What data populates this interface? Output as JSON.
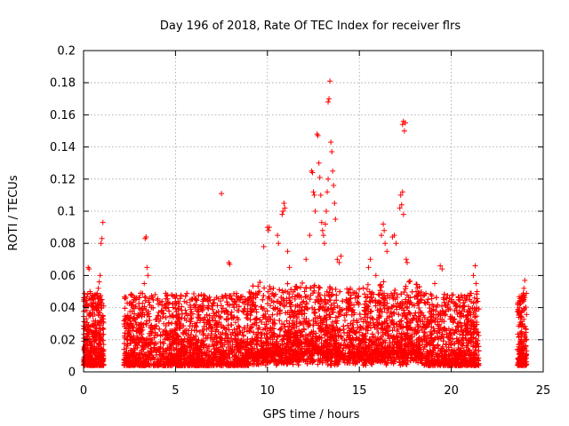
{
  "chart_data": {
    "type": "scatter",
    "title": "Day 196 of 2018, Rate Of TEC Index for receiver flrs",
    "xlabel": "GPS time / hours",
    "ylabel": "ROTI / TECUs",
    "xlim": [
      0,
      25
    ],
    "ylim": [
      0,
      0.2
    ],
    "xticks": [
      0,
      5,
      10,
      15,
      20,
      25
    ],
    "xtick_labels": [
      "0",
      "5",
      "10",
      "15",
      "20",
      "25"
    ],
    "yticks": [
      0,
      0.02,
      0.04,
      0.06,
      0.08,
      0.1,
      0.12,
      0.14,
      0.16,
      0.18,
      0.2
    ],
    "ytick_labels": [
      "0",
      "0.02",
      "0.04",
      "0.06",
      "0.08",
      "0.1",
      "0.12",
      "0.14",
      "0.16",
      "0.18",
      "0.2"
    ],
    "grid": true,
    "marker": "+",
    "color": "#ff0000",
    "data_segments": [
      {
        "start": 0.0,
        "end": 1.1
      },
      {
        "start": 2.2,
        "end": 21.5
      },
      {
        "start": 23.6,
        "end": 24.1
      }
    ],
    "series": [
      {
        "name": "ROTI",
        "points": [
          [
            0.25,
            0.065
          ],
          [
            0.3,
            0.064
          ],
          [
            0.35,
            0.05
          ],
          [
            0.5,
            0.045
          ],
          [
            0.8,
            0.052
          ],
          [
            0.85,
            0.056
          ],
          [
            0.9,
            0.06
          ],
          [
            0.95,
            0.08
          ],
          [
            1.0,
            0.083
          ],
          [
            1.05,
            0.093
          ],
          [
            1.0,
            0.045
          ],
          [
            3.4,
            0.084
          ],
          [
            3.35,
            0.083
          ],
          [
            3.45,
            0.065
          ],
          [
            3.5,
            0.06
          ],
          [
            3.3,
            0.055
          ],
          [
            7.5,
            0.111
          ],
          [
            7.9,
            0.068
          ],
          [
            7.95,
            0.067
          ],
          [
            9.8,
            0.078
          ],
          [
            10.0,
            0.09
          ],
          [
            10.05,
            0.088
          ],
          [
            10.1,
            0.09
          ],
          [
            10.55,
            0.085
          ],
          [
            10.6,
            0.08
          ],
          [
            10.8,
            0.098
          ],
          [
            10.85,
            0.1
          ],
          [
            10.9,
            0.105
          ],
          [
            10.95,
            0.102
          ],
          [
            11.1,
            0.075
          ],
          [
            11.2,
            0.065
          ],
          [
            12.1,
            0.07
          ],
          [
            12.3,
            0.085
          ],
          [
            12.4,
            0.125
          ],
          [
            12.45,
            0.124
          ],
          [
            12.5,
            0.112
          ],
          [
            12.55,
            0.11
          ],
          [
            12.6,
            0.1
          ],
          [
            12.7,
            0.148
          ],
          [
            12.75,
            0.147
          ],
          [
            12.8,
            0.13
          ],
          [
            12.85,
            0.121
          ],
          [
            12.9,
            0.11
          ],
          [
            12.95,
            0.093
          ],
          [
            13.0,
            0.088
          ],
          [
            13.05,
            0.085
          ],
          [
            13.1,
            0.08
          ],
          [
            13.15,
            0.092
          ],
          [
            13.2,
            0.1
          ],
          [
            13.25,
            0.112
          ],
          [
            13.3,
            0.12
          ],
          [
            13.3,
            0.168
          ],
          [
            13.35,
            0.17
          ],
          [
            13.4,
            0.181
          ],
          [
            13.45,
            0.143
          ],
          [
            13.5,
            0.137
          ],
          [
            13.55,
            0.125
          ],
          [
            13.6,
            0.116
          ],
          [
            13.65,
            0.105
          ],
          [
            13.7,
            0.095
          ],
          [
            13.8,
            0.07
          ],
          [
            13.9,
            0.068
          ],
          [
            14.0,
            0.072
          ],
          [
            15.5,
            0.065
          ],
          [
            15.6,
            0.07
          ],
          [
            15.9,
            0.06
          ],
          [
            16.2,
            0.085
          ],
          [
            16.3,
            0.092
          ],
          [
            16.35,
            0.088
          ],
          [
            16.4,
            0.08
          ],
          [
            16.5,
            0.075
          ],
          [
            16.8,
            0.084
          ],
          [
            16.9,
            0.085
          ],
          [
            17.0,
            0.08
          ],
          [
            17.2,
            0.102
          ],
          [
            17.25,
            0.11
          ],
          [
            17.3,
            0.104
          ],
          [
            17.35,
            0.112
          ],
          [
            17.4,
            0.098
          ],
          [
            17.35,
            0.154
          ],
          [
            17.4,
            0.156
          ],
          [
            17.45,
            0.15
          ],
          [
            17.5,
            0.155
          ],
          [
            17.55,
            0.07
          ],
          [
            17.6,
            0.068
          ],
          [
            17.7,
            0.056
          ],
          [
            19.1,
            0.055
          ],
          [
            19.4,
            0.066
          ],
          [
            19.5,
            0.064
          ],
          [
            19.6,
            0.045
          ],
          [
            20.1,
            0.048
          ],
          [
            21.0,
            0.045
          ],
          [
            21.2,
            0.06
          ],
          [
            21.3,
            0.066
          ],
          [
            21.35,
            0.055
          ],
          [
            21.4,
            0.05
          ],
          [
            23.6,
            0.042
          ],
          [
            23.7,
            0.04
          ],
          [
            23.9,
            0.048
          ],
          [
            24.0,
            0.057
          ],
          [
            23.95,
            0.052
          ]
        ]
      }
    ]
  }
}
